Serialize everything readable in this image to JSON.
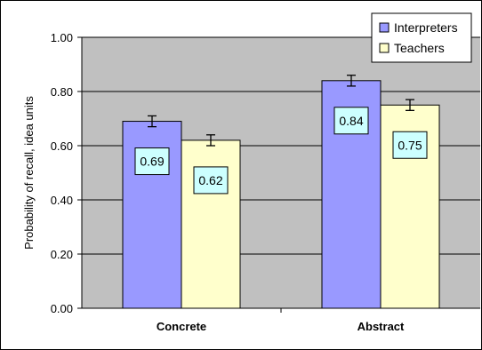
{
  "chart_data": {
    "type": "bar",
    "title": "",
    "xlabel": "",
    "ylabel": "Probability of recall, idea units",
    "categories": [
      "Concrete",
      "Abstract"
    ],
    "series": [
      {
        "name": "Interpreters",
        "values": [
          0.69,
          0.84
        ],
        "error": [
          0.02,
          0.02
        ],
        "color": "#9999ff"
      },
      {
        "name": "Teachers",
        "values": [
          0.62,
          0.75
        ],
        "error": [
          0.02,
          0.02
        ],
        "color": "#ffffcc"
      }
    ],
    "data_labels": [
      [
        "0.69",
        "0.84"
      ],
      [
        "0.62",
        "0.75"
      ]
    ],
    "ylim": [
      0,
      1
    ],
    "yticks": [
      "0.00",
      "0.20",
      "0.40",
      "0.60",
      "0.80",
      "1.00"
    ],
    "grid": true,
    "legend_position": "top-right",
    "plot_background": "#c0c0c0",
    "data_label_background": "#ccffff"
  }
}
